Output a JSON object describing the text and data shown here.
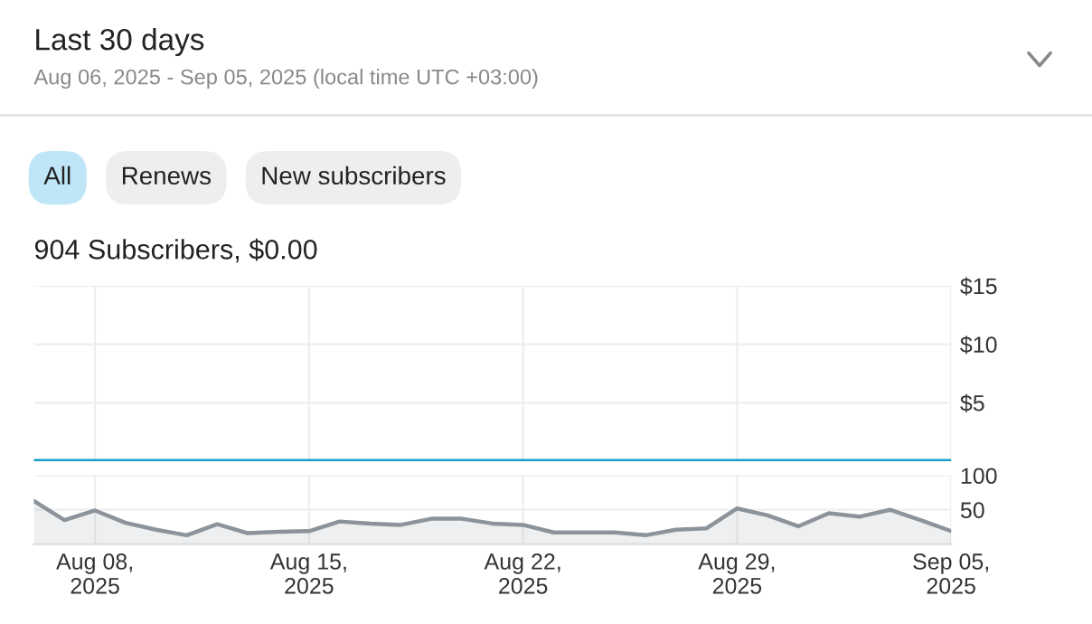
{
  "chart_data": [
    {
      "type": "line",
      "title": "Last 30 days",
      "subtitle": "Aug 06, 2025 - Sep 05, 2025 (local time UTC +03:00)",
      "annotations": [
        "All",
        "Renews",
        "New subscribers",
        "904 Subscribers, $0.00"
      ],
      "x": [
        "2025-08-06",
        "2025-08-07",
        "2025-08-08",
        "2025-08-09",
        "2025-08-10",
        "2025-08-11",
        "2025-08-12",
        "2025-08-13",
        "2025-08-14",
        "2025-08-15",
        "2025-08-16",
        "2025-08-17",
        "2025-08-18",
        "2025-08-19",
        "2025-08-20",
        "2025-08-21",
        "2025-08-22",
        "2025-08-23",
        "2025-08-24",
        "2025-08-25",
        "2025-08-26",
        "2025-08-27",
        "2025-08-28",
        "2025-08-29",
        "2025-08-30",
        "2025-08-31",
        "2025-09-01",
        "2025-09-02",
        "2025-09-03",
        "2025-09-04",
        "2025-09-05"
      ],
      "series": [
        {
          "color": "#1a9fc9",
          "values": [
            0,
            0,
            0,
            0,
            0,
            0,
            0,
            0,
            0,
            0,
            0,
            0,
            0,
            0,
            0,
            0,
            0,
            0,
            0,
            0,
            0,
            0,
            0,
            0,
            0,
            0,
            0,
            0,
            0,
            0,
            0
          ]
        }
      ],
      "xlim": [
        "2025-08-06",
        "2025-09-05"
      ],
      "ylim": [
        0,
        15
      ],
      "yticks": [
        {
          "value": 5,
          "label": "$5"
        },
        {
          "value": 10,
          "label": "$10"
        },
        {
          "value": 15,
          "label": "$15"
        }
      ],
      "xticks": [
        "2025-08-08",
        "2025-08-15",
        "2025-08-22",
        "2025-08-29",
        "2025-09-05"
      ],
      "tick_labels": "y",
      "grid": true,
      "legend": false
    },
    {
      "type": "area",
      "x": [
        "2025-08-06",
        "2025-08-07",
        "2025-08-08",
        "2025-08-09",
        "2025-08-10",
        "2025-08-11",
        "2025-08-12",
        "2025-08-13",
        "2025-08-14",
        "2025-08-15",
        "2025-08-16",
        "2025-08-17",
        "2025-08-18",
        "2025-08-19",
        "2025-08-20",
        "2025-08-21",
        "2025-08-22",
        "2025-08-23",
        "2025-08-24",
        "2025-08-25",
        "2025-08-26",
        "2025-08-27",
        "2025-08-28",
        "2025-08-29",
        "2025-08-30",
        "2025-08-31",
        "2025-09-01",
        "2025-09-02",
        "2025-09-03",
        "2025-09-04",
        "2025-09-05"
      ],
      "series": [
        {
          "color": "#8c939b",
          "values": [
            63,
            35,
            49,
            31,
            21,
            13,
            29,
            16,
            18,
            19,
            33,
            30,
            28,
            37,
            37,
            30,
            28,
            17,
            17,
            17,
            13,
            21,
            23,
            52,
            42,
            26,
            45,
            40,
            50,
            35,
            19
          ]
        }
      ],
      "xlim": [
        "2025-08-06",
        "2025-09-05"
      ],
      "ylim": [
        0,
        100
      ],
      "yticks": [
        50,
        100
      ],
      "xticks": [
        {
          "value": "2025-08-08",
          "label": "Aug 08,\n2025"
        },
        {
          "value": "2025-08-15",
          "label": "Aug 15,\n2025"
        },
        {
          "value": "2025-08-22",
          "label": "Aug 22,\n2025"
        },
        {
          "value": "2025-08-29",
          "label": "Aug 29,\n2025"
        },
        {
          "value": "2025-09-05",
          "label": "Sep 05,\n2025"
        }
      ],
      "grid": true,
      "legend": false
    }
  ]
}
